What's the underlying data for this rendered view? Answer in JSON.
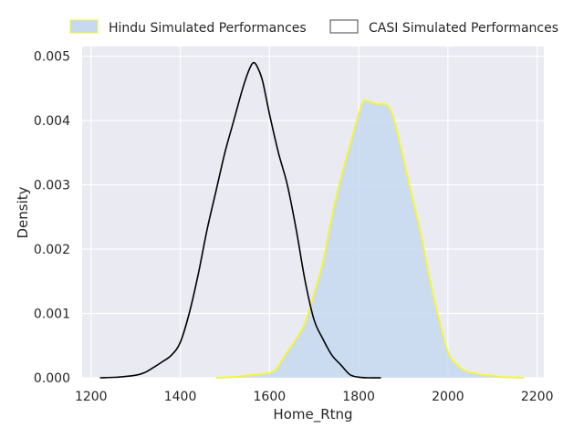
{
  "chart_data": {
    "type": "area",
    "xlabel": "Home_Rtng",
    "ylabel": "Density",
    "xlim": [
      1180,
      2215
    ],
    "ylim": [
      0,
      0.00515
    ],
    "x_ticks": [
      1200,
      1400,
      1600,
      1800,
      2000,
      2200
    ],
    "x_tick_labels": [
      "1200",
      "1400",
      "1600",
      "1800",
      "2000",
      "2200"
    ],
    "y_ticks": [
      0,
      0.001,
      0.002,
      0.003,
      0.004,
      0.005
    ],
    "y_tick_labels": [
      "0.000",
      "0.001",
      "0.002",
      "0.003",
      "0.004",
      "0.005"
    ],
    "grid": true,
    "legend_position": "top",
    "series": [
      {
        "name": "Hindu Simulated Performances",
        "style": "filled",
        "fill_color": "#c6d9f1",
        "line_color": "#f6f52a",
        "x": [
          1480,
          1520,
          1560,
          1590,
          1610,
          1620,
          1640,
          1660,
          1680,
          1700,
          1720,
          1740,
          1760,
          1780,
          1800,
          1810,
          1820,
          1840,
          1860,
          1875,
          1890,
          1900,
          1920,
          1940,
          1960,
          1980,
          2000,
          2020,
          2040,
          2060,
          2080,
          2100,
          2120,
          2140,
          2170
        ],
        "y": [
          0,
          1e-05,
          4e-05,
          6e-05,
          0.0001,
          0.00018,
          0.0004,
          0.0006,
          0.00085,
          0.0013,
          0.0018,
          0.0025,
          0.0031,
          0.0036,
          0.0041,
          0.0043,
          0.0043,
          0.00425,
          0.00425,
          0.0041,
          0.0037,
          0.0034,
          0.0028,
          0.0022,
          0.0015,
          0.0009,
          0.0004,
          0.0002,
          0.0001,
          7e-05,
          4e-05,
          3e-05,
          1e-05,
          5e-06,
          0
        ]
      },
      {
        "name": "CASI Simulated Performances",
        "style": "line",
        "line_color": "#000000",
        "x": [
          1220,
          1260,
          1300,
          1320,
          1340,
          1360,
          1380,
          1400,
          1420,
          1440,
          1460,
          1480,
          1500,
          1520,
          1540,
          1555,
          1565,
          1575,
          1585,
          1600,
          1620,
          1640,
          1660,
          1680,
          1700,
          1720,
          1740,
          1760,
          1780,
          1800,
          1820,
          1850
        ],
        "y": [
          0,
          1e-05,
          4e-05,
          8e-05,
          0.00016,
          0.00025,
          0.00035,
          0.00055,
          0.001,
          0.0016,
          0.0023,
          0.0029,
          0.0035,
          0.004,
          0.0045,
          0.0048,
          0.0049,
          0.0048,
          0.0046,
          0.0041,
          0.0035,
          0.003,
          0.0023,
          0.0015,
          0.0009,
          0.0006,
          0.00035,
          0.0002,
          5e-05,
          1e-05,
          0,
          0
        ]
      }
    ]
  }
}
